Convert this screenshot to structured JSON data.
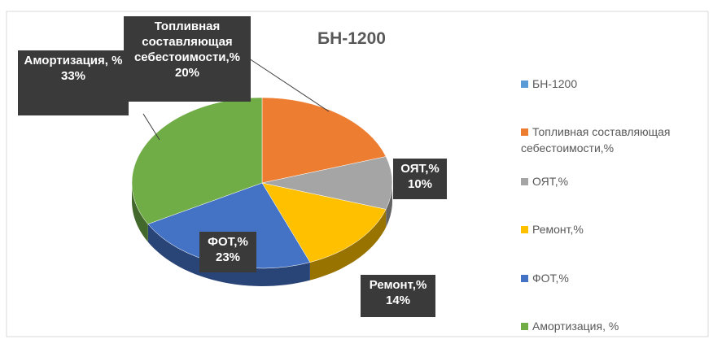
{
  "chart_data": {
    "type": "pie3d",
    "title": "БН-1200",
    "categories": [
      "БН-1200",
      "Топливная составляющая себестоимости,%",
      "ОЯТ,%",
      "Ремонт,%",
      "ФОТ,%",
      "Амортизация, %"
    ],
    "values": [
      null,
      20,
      10,
      14,
      23,
      33
    ],
    "value_labels": [
      null,
      "20%",
      "10%",
      "14%",
      "23%",
      "33%"
    ],
    "colors": [
      "#5b9bd5",
      "#ed7d31",
      "#a5a5a5",
      "#ffc000",
      "#4472c4",
      "#70ad47"
    ],
    "legend": "right"
  }
}
